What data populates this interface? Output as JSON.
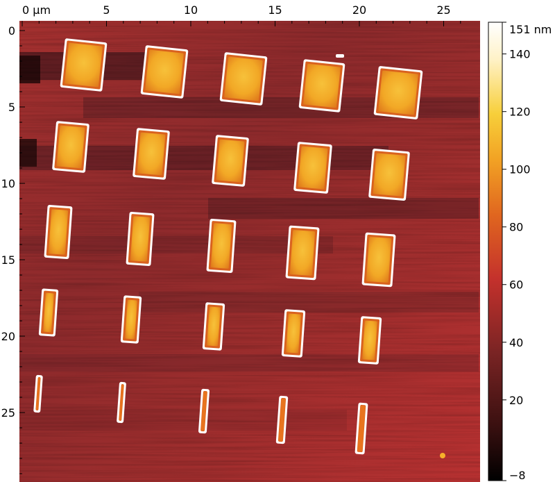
{
  "image": {
    "description_colormap": "afm-hot",
    "x_axis": {
      "unit": "µm",
      "ticks": [
        {
          "value": 0,
          "label": "0 µm"
        },
        {
          "value": 5,
          "label": "5"
        },
        {
          "value": 10,
          "label": "10"
        },
        {
          "value": 15,
          "label": "15"
        },
        {
          "value": 20,
          "label": "20"
        },
        {
          "value": 25,
          "label": "25"
        }
      ],
      "range": [
        0,
        27
      ]
    },
    "y_axis": {
      "ticks": [
        {
          "value": 0,
          "label": "0"
        },
        {
          "value": 5,
          "label": "5"
        },
        {
          "value": 10,
          "label": "10"
        },
        {
          "value": 15,
          "label": "15"
        },
        {
          "value": 20,
          "label": "20"
        },
        {
          "value": 25,
          "label": "25"
        }
      ],
      "range": [
        0,
        29.5
      ]
    },
    "colorbar": {
      "unit": "nm",
      "min": -8,
      "max": 151,
      "ticks": [
        {
          "value": 151,
          "label": "151 nm"
        },
        {
          "value": 140,
          "label": "140"
        },
        {
          "value": 120,
          "label": "120"
        },
        {
          "value": 100,
          "label": "100"
        },
        {
          "value": 80,
          "label": "80"
        },
        {
          "value": 60,
          "label": "60"
        },
        {
          "value": 40,
          "label": "40"
        },
        {
          "value": 20,
          "label": "20"
        },
        {
          "value": -8,
          "label": "−8"
        }
      ],
      "stops": [
        "#000000",
        "#3a1010",
        "#7a2424",
        "#c4312c",
        "#e0661f",
        "#f2a224",
        "#f7cf3a",
        "#fff2c8",
        "#ffffff"
      ]
    },
    "colors": {
      "background_main": "#a8302f",
      "background_dark": "#5c1e23",
      "feature_edge": "#ffffff",
      "feature_body": "#f4a623"
    }
  }
}
